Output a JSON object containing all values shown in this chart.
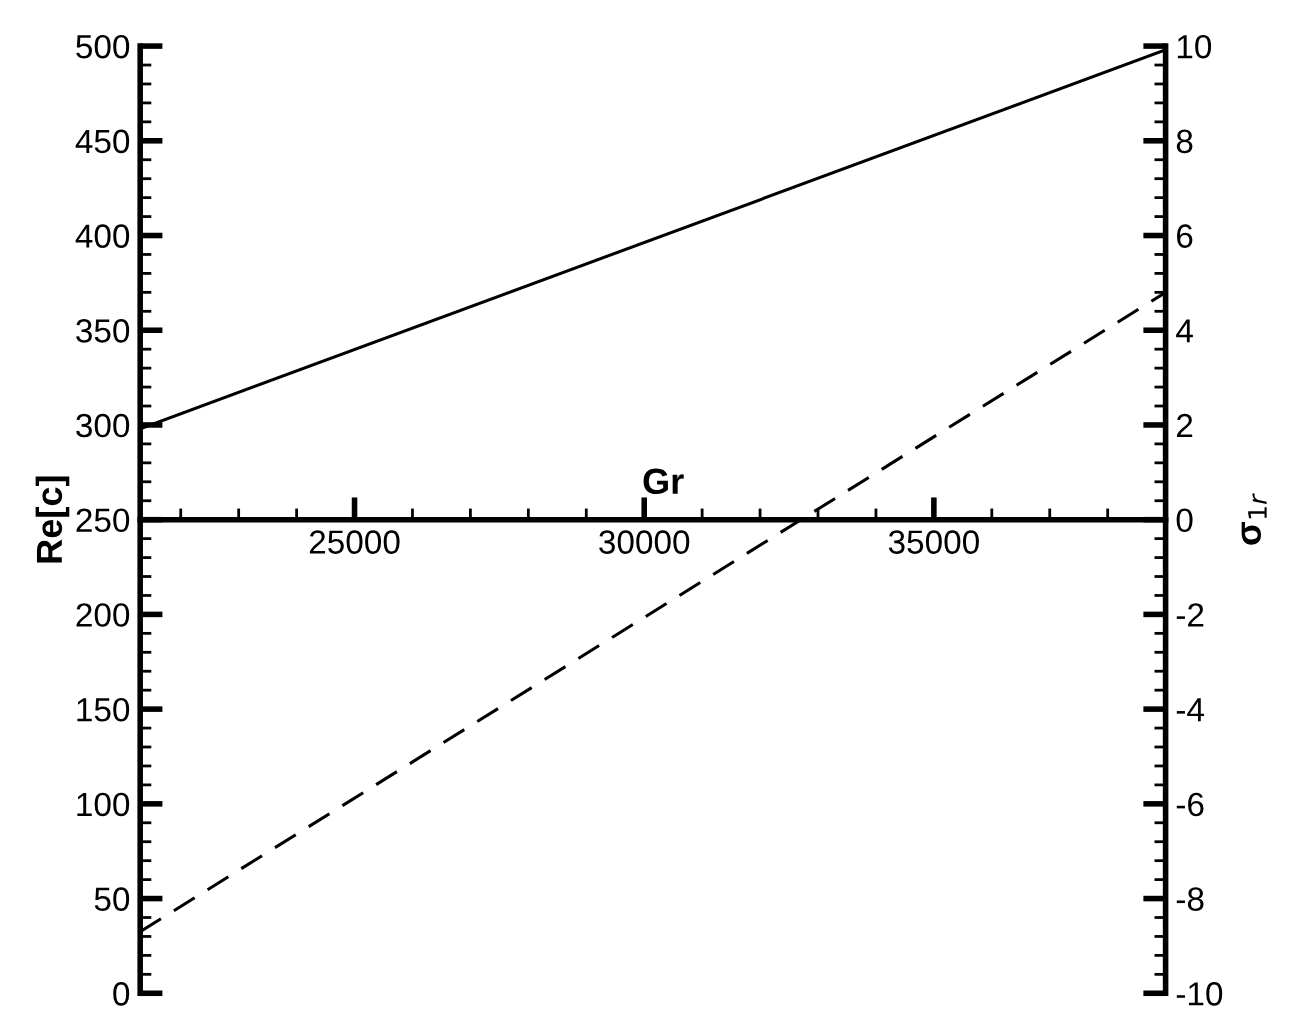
{
  "chart_data": {
    "type": "line",
    "xlabel": "Gr",
    "ylabel": "Re[c]",
    "y2label": "σ$_{1r}$",
    "x": [
      21300,
      39000
    ],
    "series": [
      {
        "color": "#000000",
        "values": [
          298,
          498
        ],
        "line_style": "solid"
      },
      {
        "color": "#000000",
        "values": [
          -8.7,
          4.8
        ],
        "axis": "y2",
        "line_style": "dashed"
      }
    ],
    "xlim": [
      21300,
      39000
    ],
    "xticks": [
      25000,
      30000,
      35000
    ],
    "ylim": [
      0,
      500
    ],
    "yticks": [
      0,
      50,
      100,
      150,
      200,
      250,
      300,
      350,
      400,
      450,
      500
    ],
    "y2lim": [
      -10,
      10
    ],
    "y2ticks": [
      -10,
      -8,
      -6,
      -4,
      -2,
      0,
      2,
      4,
      6,
      8,
      10
    ],
    "grid": false,
    "legend": false,
    "marker": "none"
  }
}
